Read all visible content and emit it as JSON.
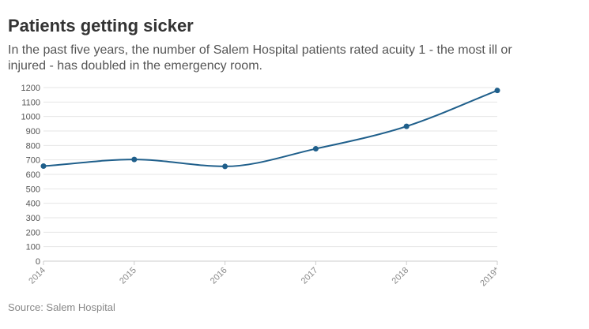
{
  "title": "Patients getting sicker",
  "subtitle": "In the past five years, the number of Salem Hospital patients rated acuity 1 - the most ill or injured - has doubled in the emergency room.",
  "source": "Source: Salem Hospital",
  "colors": {
    "line": "#1f5f8b",
    "grid": "#e6e6e6",
    "axis": "#cccccc"
  },
  "chart_data": {
    "type": "line",
    "title": "",
    "xlabel": "",
    "ylabel": "",
    "categories": [
      "2014",
      "2015",
      "2016",
      "2017",
      "2018",
      "2019*"
    ],
    "series": [
      {
        "values": [
          657,
          703,
          655,
          777,
          932,
          1180
        ]
      }
    ],
    "ylim": [
      0,
      1200
    ],
    "yticks": [
      0,
      100,
      200,
      300,
      400,
      500,
      600,
      700,
      800,
      900,
      1000,
      1100,
      1200
    ],
    "grid": true,
    "smooth": true
  }
}
